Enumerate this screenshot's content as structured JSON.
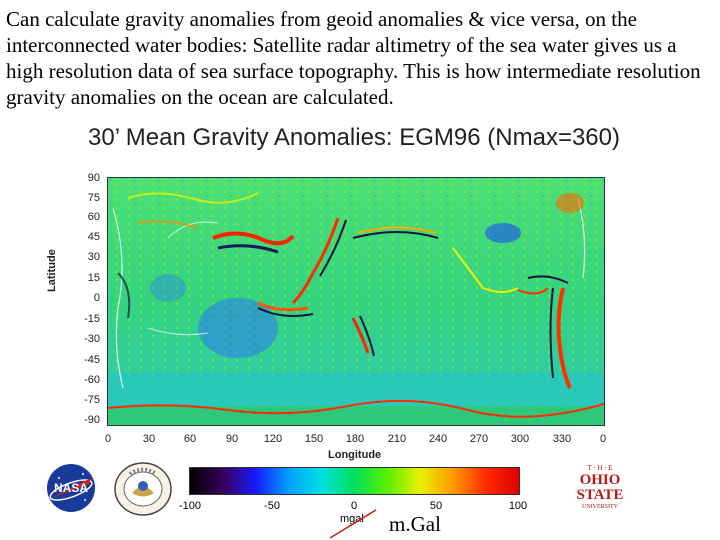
{
  "caption": "Can calculate gravity anomalies from geoid anomalies & vice versa, on the interconnected water bodies: Satellite radar altimetry of the sea water gives us a high resolution data of sea surface topography.  This is how intermediate resolution gravity anomalies on the ocean are calculated.",
  "map": {
    "title": "30’ Mean Gravity Anomalies: EGM96 (Nmax=360)",
    "y_axis_title": "Latitude",
    "x_axis_title": "Longitude",
    "y_ticks": [
      "90",
      "75",
      "60",
      "45",
      "30",
      "15",
      "0",
      "-15",
      "-30",
      "-45",
      "-60",
      "-75",
      "-90"
    ],
    "x_ticks": [
      "0",
      "30",
      "60",
      "90",
      "120",
      "150",
      "180",
      "210",
      "240",
      "270",
      "300",
      "330",
      "0"
    ]
  },
  "colorbar": {
    "ticks": [
      "-100",
      "-50",
      "0",
      "50",
      "100"
    ],
    "colors": [
      "#000000",
      "#3a005a",
      "#1a1aff",
      "#00a0ff",
      "#00e0e0",
      "#00e05a",
      "#5af000",
      "#e8f000",
      "#ff9900",
      "#ff2a00",
      "#e00000"
    ],
    "unit_small": "mgal",
    "unit_large": "m.Gal"
  },
  "logos": {
    "nasa": "NASA",
    "seal": "NATIONAL IMAGERY AND MAPPING AGENCY",
    "osu_top": "T · H · E",
    "osu_main_1": "OHIO",
    "osu_main_2": "STATE",
    "osu_bottom": "UNIVERSITY"
  },
  "palette": {
    "ocean_green": "#3ed86a",
    "ocean_cyan": "#2fd0c8",
    "deep_blue": "#2060ff",
    "trench": "#1a1a40",
    "high": "#ff3000"
  }
}
